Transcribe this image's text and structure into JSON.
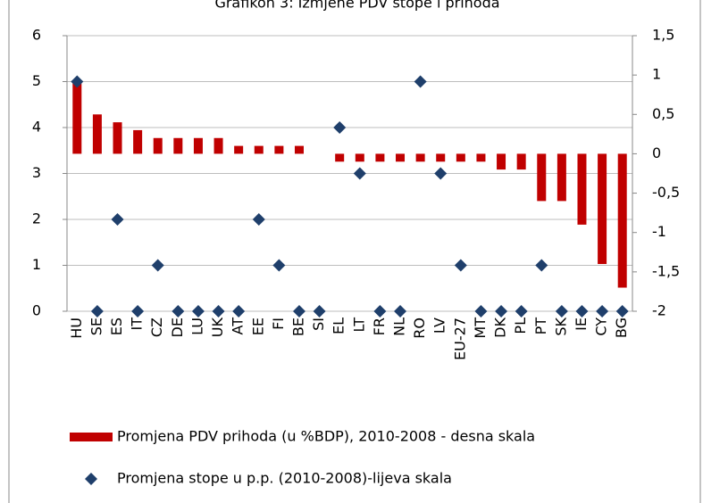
{
  "chart_data": {
    "type": "combo",
    "title": "Grafikon 3: Izmjene PDV stope i prihoda",
    "categories": [
      "HU",
      "SE",
      "ES",
      "IT",
      "CZ",
      "DE",
      "LU",
      "UK",
      "AT",
      "EE",
      "FI",
      "BE",
      "SI",
      "EL",
      "LT",
      "FR",
      "NL",
      "RO",
      "LV",
      "EU-27",
      "MT",
      "DK",
      "PL",
      "PT",
      "SK",
      "IE",
      "CY",
      "BG"
    ],
    "series": [
      {
        "name": "Promjena PDV prihoda (u %BDP), 2010-2008 - desna skala",
        "type": "bar",
        "axis": "y2",
        "color": "#c00000",
        "values": [
          0.9,
          0.5,
          0.4,
          0.3,
          0.2,
          0.2,
          0.2,
          0.2,
          0.1,
          0.1,
          0.1,
          0.1,
          0,
          -0.1,
          -0.1,
          -0.1,
          -0.1,
          -0.1,
          -0.1,
          -0.1,
          -0.1,
          -0.2,
          -0.2,
          -0.6,
          -0.6,
          -0.9,
          -1.4,
          -1.7
        ]
      },
      {
        "name": "Promjena stope u p.p. (2010-2008)-lijeva skala",
        "type": "scatter",
        "axis": "y",
        "color": "#1f3f6b",
        "values": [
          5,
          0,
          2,
          0,
          1,
          0,
          0,
          0,
          0,
          2,
          1,
          0,
          0,
          4,
          3,
          0,
          0,
          5,
          3,
          1,
          0,
          0,
          0,
          1,
          0,
          0,
          0,
          0
        ]
      }
    ],
    "ylim": [
      0,
      6
    ],
    "yticks": [
      0,
      1,
      2,
      3,
      4,
      5,
      6
    ],
    "y2lim": [
      -2,
      1.5
    ],
    "y2ticks": [
      -2,
      {
        "value": -1.5,
        "label": "-1,5"
      },
      -1,
      {
        "value": -0.5,
        "label": "-0,5"
      },
      0,
      {
        "value": 0.5,
        "label": "0,5"
      },
      1,
      {
        "value": 1.5,
        "label": "1,5"
      }
    ],
    "grid": true
  }
}
